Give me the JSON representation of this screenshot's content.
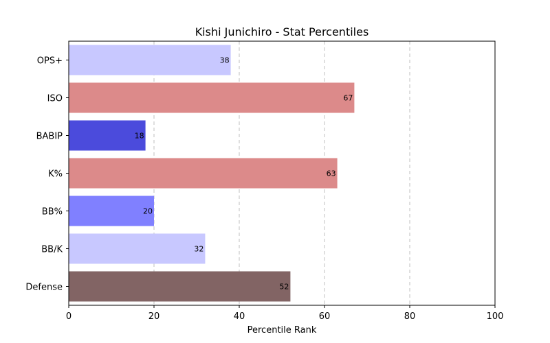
{
  "chart_data": {
    "type": "bar",
    "orientation": "horizontal",
    "title": "Kishi Junichiro - Stat Percentiles",
    "xlabel": "Percentile Rank",
    "ylabel": "",
    "xlim": [
      0,
      100
    ],
    "xticks": [
      0,
      20,
      40,
      60,
      80,
      100
    ],
    "grid": "x-dashed",
    "categories": [
      "OPS+",
      "ISO",
      "BABIP",
      "K%",
      "BB%",
      "BB/K",
      "Defense"
    ],
    "values": [
      38,
      67,
      18,
      63,
      20,
      32,
      52
    ],
    "colors": [
      "#c8c8ff",
      "#dc8a8a",
      "#4b4bdc",
      "#dc8a8a",
      "#8080ff",
      "#c8c8ff",
      "#826464"
    ]
  }
}
